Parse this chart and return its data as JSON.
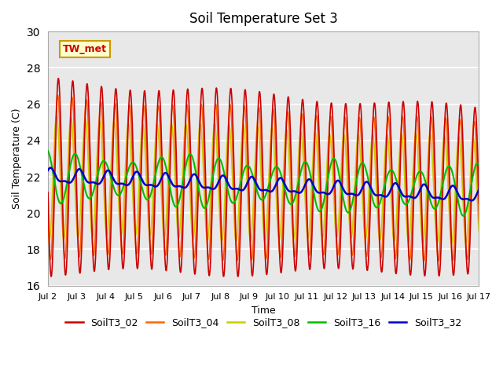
{
  "title": "Soil Temperature Set 3",
  "xlabel": "Time",
  "ylabel": "Soil Temperature (C)",
  "xlim": [
    0,
    15
  ],
  "ylim": [
    16,
    30
  ],
  "yticks": [
    16,
    18,
    20,
    22,
    24,
    26,
    28,
    30
  ],
  "xtick_labels": [
    "Jul 2",
    "Jul 3",
    "Jul 4",
    "Jul 5",
    "Jul 6",
    "Jul 7",
    "Jul 8",
    "Jul 9",
    "Jul 10",
    "Jul 11",
    "Jul 12",
    "Jul 13",
    "Jul 14",
    "Jul 15",
    "Jul 16",
    "Jul 17"
  ],
  "annotation_text": "TW_met",
  "annotation_color": "#cc0000",
  "annotation_bg": "#ffffcc",
  "annotation_border": "#cc9900",
  "series_colors": {
    "SoilT3_02": "#cc0000",
    "SoilT3_04": "#ff6600",
    "SoilT3_08": "#cccc00",
    "SoilT3_16": "#00bb00",
    "SoilT3_32": "#0000cc"
  },
  "bg_color": "#e8e8e8",
  "grid_color": "#ffffff",
  "line_width": 1.2
}
